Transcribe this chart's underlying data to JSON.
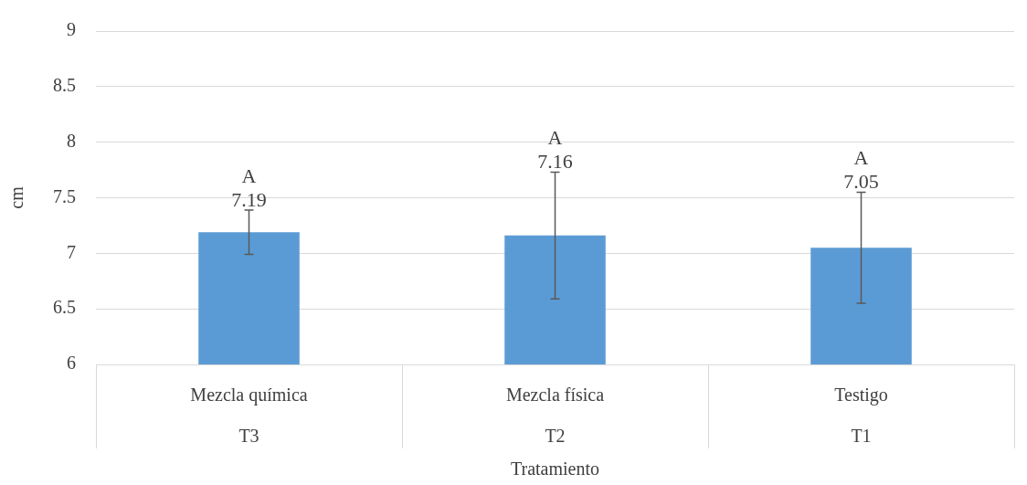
{
  "chart_data": {
    "type": "bar",
    "categories": [
      "Mezcla química\nT3",
      "Mezcla física\nT2",
      "Testigo\nT1"
    ],
    "values": [
      7.19,
      7.16,
      7.05
    ],
    "errors": [
      0.2,
      0.57,
      0.5
    ],
    "color": "#5b9bd5",
    "xlabel": "Tratamiento",
    "ylabel": "cm",
    "ylim": [
      6,
      9
    ],
    "yticks": [
      6,
      6.5,
      7,
      7.5,
      8,
      8.5,
      9
    ],
    "grid": "y",
    "data_labels": true,
    "annotations": [
      "A",
      "A",
      "A"
    ]
  }
}
